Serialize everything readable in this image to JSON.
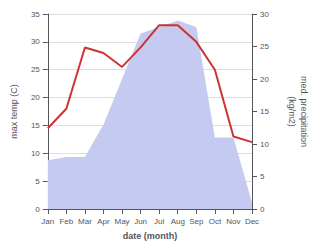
{
  "chart_data": {
    "type": "line",
    "categories": [
      "Jan",
      "Feb",
      "Mar",
      "Apr",
      "May",
      "Jun",
      "Jul",
      "Aug",
      "Sep",
      "Oct",
      "Nov",
      "Dec"
    ],
    "series": [
      {
        "type": "area",
        "axis": "y2",
        "color": "#c5caf0",
        "values": [
          7.5,
          8.0,
          8.0,
          13.0,
          20.0,
          27.0,
          28.0,
          29.0,
          28.0,
          11.0,
          11.0,
          1.0
        ]
      },
      {
        "type": "line",
        "color": "#cc3333",
        "values": [
          14.5,
          18.0,
          29.0,
          28.0,
          25.5,
          29.0,
          33.0,
          33.0,
          30.0,
          25.0,
          13.0,
          12.0
        ]
      }
    ],
    "xlabel": "date (month)",
    "ylabel": "max temp (C)",
    "y2label": "med. precipitation\n(kg/m2)",
    "ylim": [
      0,
      35
    ],
    "yticks": [
      0,
      5,
      10,
      15,
      20,
      25,
      30,
      35
    ],
    "y2lim": [
      0,
      30
    ],
    "y2ticks": [
      0,
      5,
      10,
      15,
      20,
      25,
      30
    ],
    "grid": true
  }
}
